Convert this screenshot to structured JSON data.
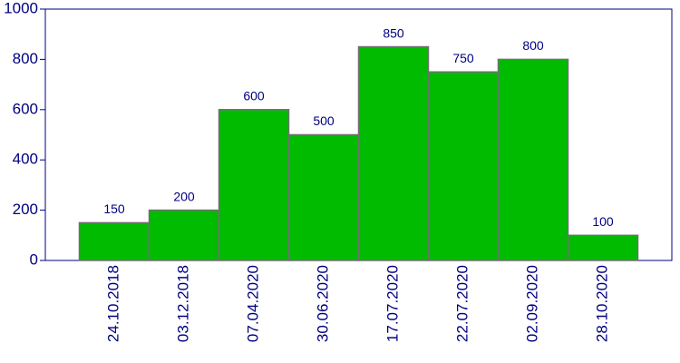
{
  "chart_data": {
    "type": "bar",
    "categories": [
      "24.10.2018",
      "03.12.2018",
      "07.04.2020",
      "30.06.2020",
      "17.07.2020",
      "22.07.2020",
      "02.09.2020",
      "28.10.2020"
    ],
    "values": [
      150,
      200,
      600,
      500,
      850,
      750,
      800,
      100
    ],
    "color": "#00bb00",
    "ylim": [
      0,
      1000
    ],
    "yticks": [
      0,
      200,
      400,
      600,
      800,
      1000
    ]
  }
}
